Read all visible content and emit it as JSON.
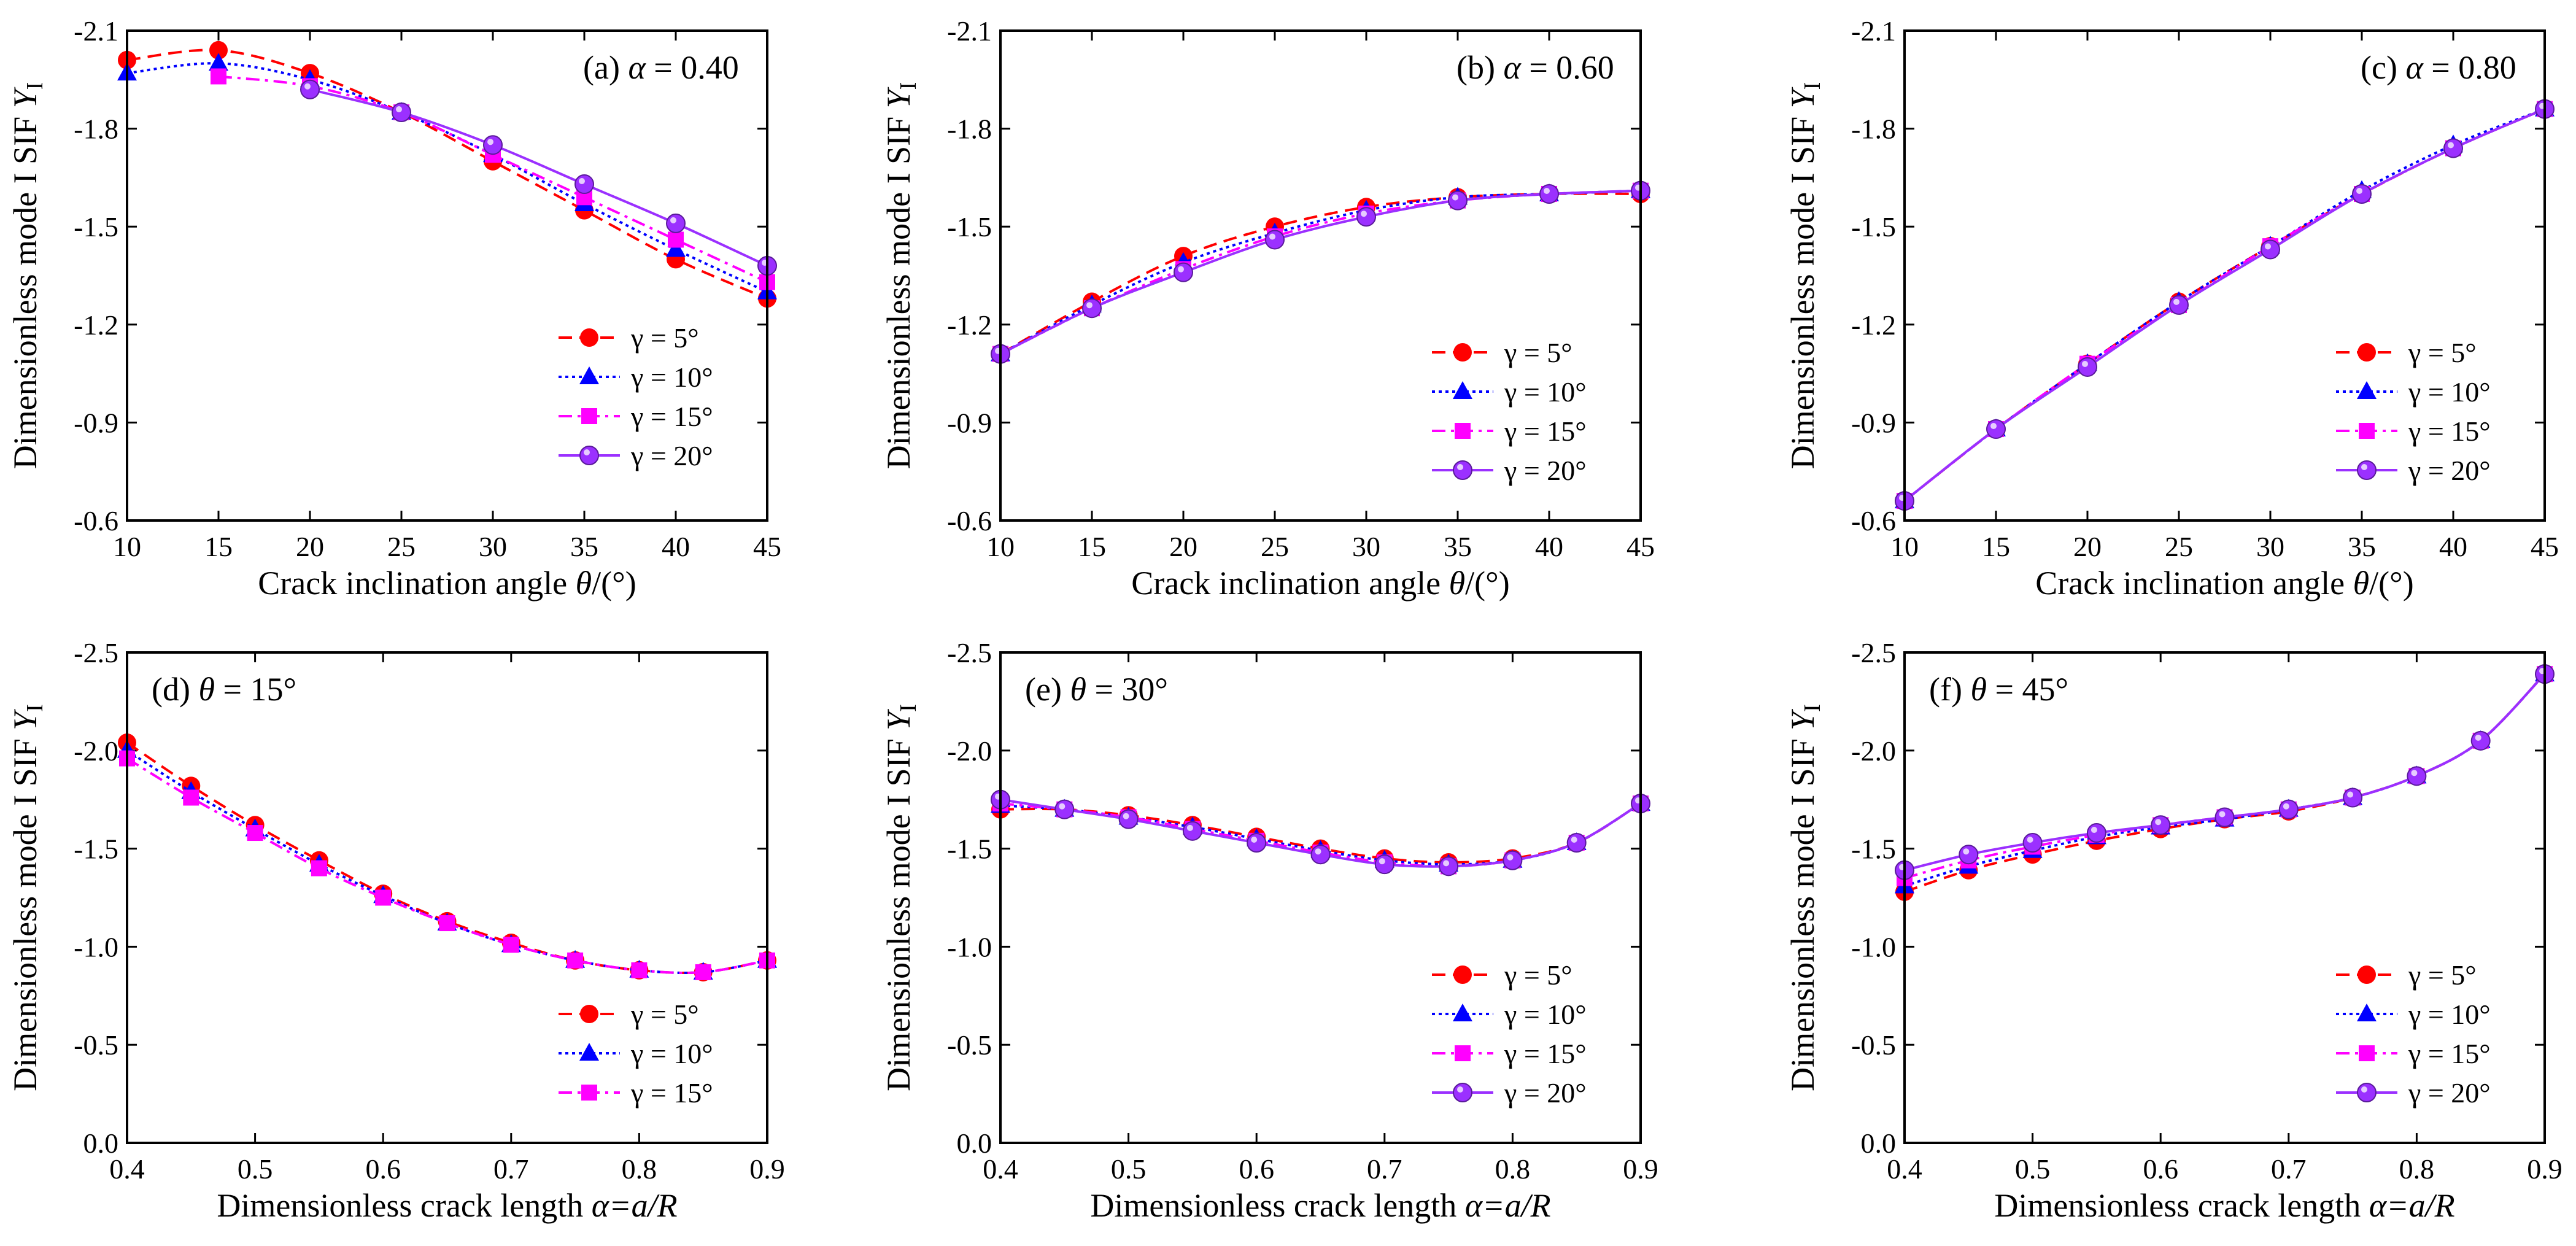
{
  "figure": {
    "styles": {
      "5": {
        "color": "#ff0000",
        "dash": "22 12",
        "marker": "circle"
      },
      "10": {
        "color": "#0000ff",
        "dash": "5 6",
        "marker": "triangle"
      },
      "15": {
        "color": "#ff00ff",
        "dash": "22 9 5 9",
        "marker": "square"
      },
      "20": {
        "color": "#9b30ff",
        "dash": "",
        "marker": "sphere"
      }
    }
  },
  "chart_data": [
    {
      "type": "line",
      "label_prefix": "(a)",
      "label_var": "α",
      "label_value": "= 0.40",
      "xlabel_prefix": "Crack inclination angle ",
      "xlabel_var": "θ",
      "xlabel_suffix": "/(°)",
      "ylabel_main": "Dimensionless mode I SIF ",
      "ylabel_var": "Y",
      "ylabel_sub": "I",
      "x": [
        10,
        15,
        20,
        25,
        30,
        35,
        40,
        45
      ],
      "xticks": [
        "10",
        "15",
        "20",
        "25",
        "30",
        "35",
        "40",
        "45"
      ],
      "xlim": [
        10,
        45
      ],
      "yticks": [
        "-0.6",
        "-0.9",
        "-1.2",
        "-1.5",
        "-1.8",
        "-2.1"
      ],
      "ylim": [
        -0.6,
        -2.1
      ],
      "legend": "right-center",
      "series": [
        {
          "name": "γ = 5°",
          "key": "5",
          "values": [
            -2.01,
            -2.04,
            -1.97,
            -1.85,
            -1.7,
            -1.55,
            -1.4,
            -1.28
          ]
        },
        {
          "name": "γ = 10°",
          "key": "10",
          "values": [
            -1.97,
            -2.0,
            -1.95,
            -1.85,
            -1.72,
            -1.57,
            -1.43,
            -1.3
          ]
        },
        {
          "name": "γ = 15°",
          "key": "15",
          "values": [
            null,
            -1.96,
            -1.93,
            -1.85,
            -1.72,
            -1.59,
            -1.46,
            -1.33
          ]
        },
        {
          "name": "γ = 20°",
          "key": "20",
          "values": [
            null,
            null,
            -1.92,
            -1.85,
            -1.75,
            -1.63,
            -1.51,
            -1.38
          ]
        }
      ]
    },
    {
      "type": "line",
      "label_prefix": "(b)",
      "label_var": "α",
      "label_value": "= 0.60",
      "xlabel_prefix": "Crack inclination angle ",
      "xlabel_var": "θ",
      "xlabel_suffix": "/(°)",
      "ylabel_main": "Dimensionless mode I SIF ",
      "ylabel_var": "Y",
      "ylabel_sub": "I",
      "x": [
        10,
        15,
        20,
        25,
        30,
        35,
        40,
        45
      ],
      "xticks": [
        "10",
        "15",
        "20",
        "25",
        "30",
        "35",
        "40",
        "45"
      ],
      "xlim": [
        10,
        45
      ],
      "yticks": [
        "-0.6",
        "-0.9",
        "-1.2",
        "-1.5",
        "-1.8",
        "-2.1"
      ],
      "ylim": [
        -0.6,
        -2.1
      ],
      "legend": "bottom-right",
      "series": [
        {
          "name": "γ = 5°",
          "key": "5",
          "values": [
            -1.11,
            -1.27,
            -1.41,
            -1.5,
            -1.56,
            -1.59,
            -1.6,
            -1.6
          ]
        },
        {
          "name": "γ = 10°",
          "key": "10",
          "values": [
            -1.11,
            -1.26,
            -1.39,
            -1.48,
            -1.55,
            -1.59,
            -1.6,
            -1.61
          ]
        },
        {
          "name": "γ = 15°",
          "key": "15",
          "values": [
            -1.11,
            -1.25,
            -1.37,
            -1.47,
            -1.54,
            -1.58,
            -1.6,
            -1.61
          ]
        },
        {
          "name": "γ = 20°",
          "key": "20",
          "values": [
            -1.11,
            -1.25,
            -1.36,
            -1.46,
            -1.53,
            -1.58,
            -1.6,
            -1.61
          ]
        }
      ]
    },
    {
      "type": "line",
      "label_prefix": "(c)",
      "label_var": "α",
      "label_value": "= 0.80",
      "xlabel_prefix": "Crack inclination angle ",
      "xlabel_var": "θ",
      "xlabel_suffix": "/(°)",
      "ylabel_main": "Dimensionless mode I SIF ",
      "ylabel_var": "Y",
      "ylabel_sub": "I",
      "x": [
        10,
        15,
        20,
        25,
        30,
        35,
        40,
        45
      ],
      "xticks": [
        "10",
        "15",
        "20",
        "25",
        "30",
        "35",
        "40",
        "45"
      ],
      "xlim": [
        10,
        45
      ],
      "yticks": [
        "-0.6",
        "-0.9",
        "-1.2",
        "-1.5",
        "-1.8",
        "-2.1"
      ],
      "ylim": [
        -0.6,
        -2.1
      ],
      "legend": "bottom-right",
      "series": [
        {
          "name": "γ = 5°",
          "key": "5",
          "values": [
            -0.66,
            -0.88,
            -1.08,
            -1.27,
            -1.44,
            -1.6,
            -1.74,
            -1.86
          ]
        },
        {
          "name": "γ = 10°",
          "key": "10",
          "values": [
            -0.66,
            -0.88,
            -1.08,
            -1.27,
            -1.44,
            -1.61,
            -1.75,
            -1.86
          ]
        },
        {
          "name": "γ = 15°",
          "key": "15",
          "values": [
            -0.66,
            -0.88,
            -1.08,
            -1.26,
            -1.44,
            -1.6,
            -1.74,
            -1.86
          ]
        },
        {
          "name": "γ = 20°",
          "key": "20",
          "values": [
            -0.66,
            -0.88,
            -1.07,
            -1.26,
            -1.43,
            -1.6,
            -1.74,
            -1.86
          ]
        }
      ]
    },
    {
      "type": "line",
      "label_prefix": "(d)",
      "label_var": "θ",
      "label_value": "= 15°",
      "xlabel_prefix": "Dimensionless crack length ",
      "xlabel_var": "α=a/R",
      "xlabel_suffix": "",
      "ylabel_main": "Dimensionless mode I SIF ",
      "ylabel_var": "Y",
      "ylabel_sub": "I",
      "x": [
        0.4,
        0.45,
        0.5,
        0.55,
        0.6,
        0.65,
        0.7,
        0.75,
        0.8,
        0.85,
        0.9
      ],
      "xticks": [
        "0.4",
        "0.5",
        "0.6",
        "0.7",
        "0.8",
        "0.9"
      ],
      "xlim": [
        0.4,
        0.9
      ],
      "yticks": [
        "0.0",
        "-0.5",
        "-1.0",
        "-1.5",
        "-2.0",
        "-2.5"
      ],
      "ylim": [
        0.0,
        -2.5
      ],
      "legend": "bottom-right",
      "series": [
        {
          "name": "γ = 5°",
          "key": "5",
          "values": [
            -2.04,
            -1.82,
            -1.62,
            -1.44,
            -1.27,
            -1.13,
            -1.02,
            -0.93,
            -0.88,
            -0.87,
            -0.93
          ]
        },
        {
          "name": "γ = 10°",
          "key": "10",
          "values": [
            -2.0,
            -1.79,
            -1.6,
            -1.42,
            -1.26,
            -1.12,
            -1.01,
            -0.93,
            -0.88,
            -0.87,
            -0.93
          ]
        },
        {
          "name": "γ = 15°",
          "key": "15",
          "values": [
            -1.96,
            -1.76,
            -1.58,
            -1.4,
            -1.25,
            -1.12,
            -1.01,
            -0.93,
            -0.88,
            -0.87,
            -0.93
          ]
        }
      ]
    },
    {
      "type": "line",
      "label_prefix": "(e)",
      "label_var": "θ",
      "label_value": "= 30°",
      "xlabel_prefix": "Dimensionless crack length ",
      "xlabel_var": "α=a/R",
      "xlabel_suffix": "",
      "ylabel_main": "Dimensionless mode I SIF ",
      "ylabel_var": "Y",
      "ylabel_sub": "I",
      "x": [
        0.4,
        0.45,
        0.5,
        0.55,
        0.6,
        0.65,
        0.7,
        0.75,
        0.8,
        0.85,
        0.9
      ],
      "xticks": [
        "0.4",
        "0.5",
        "0.6",
        "0.7",
        "0.8",
        "0.9"
      ],
      "xlim": [
        0.4,
        0.9
      ],
      "yticks": [
        "0.0",
        "-0.5",
        "-1.0",
        "-1.5",
        "-2.0",
        "-2.5"
      ],
      "ylim": [
        0.0,
        -2.5
      ],
      "legend": "bottom-right",
      "series": [
        {
          "name": "γ = 5°",
          "key": "5",
          "values": [
            -1.7,
            -1.7,
            -1.67,
            -1.62,
            -1.56,
            -1.5,
            -1.45,
            -1.43,
            -1.45,
            -1.53,
            -1.73
          ]
        },
        {
          "name": "γ = 10°",
          "key": "10",
          "values": [
            -1.72,
            -1.7,
            -1.66,
            -1.61,
            -1.55,
            -1.49,
            -1.44,
            -1.42,
            -1.44,
            -1.53,
            -1.73
          ]
        },
        {
          "name": "γ = 15°",
          "key": "15",
          "values": [
            -1.73,
            -1.7,
            -1.66,
            -1.6,
            -1.54,
            -1.48,
            -1.43,
            -1.41,
            -1.44,
            -1.53,
            -1.73
          ]
        },
        {
          "name": "γ = 20°",
          "key": "20",
          "values": [
            -1.75,
            -1.7,
            -1.65,
            -1.59,
            -1.53,
            -1.47,
            -1.42,
            -1.41,
            -1.44,
            -1.53,
            -1.73
          ]
        }
      ]
    },
    {
      "type": "line",
      "label_prefix": "(f)",
      "label_var": "θ",
      "label_value": "= 45°",
      "xlabel_prefix": "Dimensionless crack length ",
      "xlabel_var": "α=a/R",
      "xlabel_suffix": "",
      "ylabel_main": "Dimensionless mode I SIF ",
      "ylabel_var": "Y",
      "ylabel_sub": "I",
      "x": [
        0.4,
        0.45,
        0.5,
        0.55,
        0.6,
        0.65,
        0.7,
        0.75,
        0.8,
        0.85,
        0.9
      ],
      "xticks": [
        "0.4",
        "0.5",
        "0.6",
        "0.7",
        "0.8",
        "0.9"
      ],
      "xlim": [
        0.4,
        0.9
      ],
      "yticks": [
        "0.0",
        "-0.5",
        "-1.0",
        "-1.5",
        "-2.0",
        "-2.5"
      ],
      "ylim": [
        0.0,
        -2.5
      ],
      "legend": "bottom-right",
      "series": [
        {
          "name": "γ = 5°",
          "key": "5",
          "values": [
            -1.28,
            -1.39,
            -1.47,
            -1.54,
            -1.6,
            -1.65,
            -1.69,
            -1.76,
            -1.87,
            -2.05,
            -2.39
          ]
        },
        {
          "name": "γ = 10°",
          "key": "10",
          "values": [
            -1.31,
            -1.41,
            -1.49,
            -1.56,
            -1.61,
            -1.65,
            -1.7,
            -1.76,
            -1.87,
            -2.05,
            -2.39
          ]
        },
        {
          "name": "γ = 15°",
          "key": "15",
          "values": [
            -1.35,
            -1.44,
            -1.51,
            -1.57,
            -1.62,
            -1.66,
            -1.7,
            -1.76,
            -1.87,
            -2.05,
            -2.39
          ]
        },
        {
          "name": "γ = 20°",
          "key": "20",
          "values": [
            -1.39,
            -1.47,
            -1.53,
            -1.58,
            -1.62,
            -1.66,
            -1.7,
            -1.76,
            -1.87,
            -2.05,
            -2.39
          ]
        }
      ]
    }
  ]
}
